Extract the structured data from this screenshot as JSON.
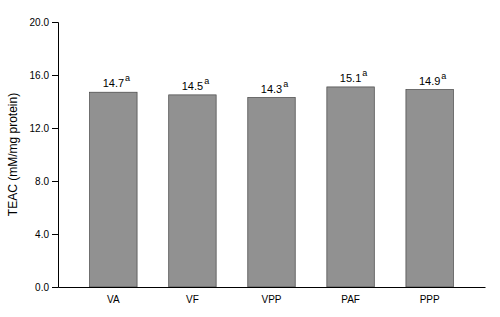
{
  "chart_data": {
    "type": "bar",
    "ylabel": "TEAC (mM/mg protein)",
    "categories": [
      "VA",
      "VF",
      "VPP",
      "PAF",
      "PPP"
    ],
    "values": [
      14.7,
      14.5,
      14.3,
      15.1,
      14.9
    ],
    "annotations": [
      "a",
      "a",
      "a",
      "a",
      "a"
    ],
    "color": "#919191",
    "ylim": [
      0.0,
      20.0
    ],
    "yticks": [
      {
        "value": 0.0,
        "label": "0.0"
      },
      {
        "value": 4.0,
        "label": "4.0"
      },
      {
        "value": 8.0,
        "label": "8.0"
      },
      {
        "value": 12.0,
        "label": "12.0"
      },
      {
        "value": 16.0,
        "label": "16.0"
      },
      {
        "value": 20.0,
        "label": "20.0"
      }
    ],
    "grid": false,
    "data_labels": true
  }
}
